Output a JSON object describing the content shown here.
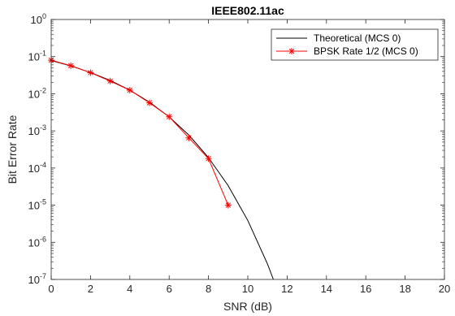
{
  "chart_data": {
    "type": "line",
    "title": "IEEE802.11ac",
    "xlabel": "SNR (dB)",
    "ylabel": "Bit Error Rate",
    "xlim": [
      0,
      20
    ],
    "ylim": [
      1e-07,
      1
    ],
    "yscale": "log",
    "grid": false,
    "legend_position": "top-right",
    "x_ticks": [
      "0",
      "2",
      "4",
      "6",
      "8",
      "10",
      "12",
      "14",
      "16",
      "18",
      "20"
    ],
    "y_ticks": [
      {
        "base": "10",
        "exp": "0"
      },
      {
        "base": "10",
        "exp": "-1"
      },
      {
        "base": "10",
        "exp": "-2"
      },
      {
        "base": "10",
        "exp": "-3"
      },
      {
        "base": "10",
        "exp": "-4"
      },
      {
        "base": "10",
        "exp": "-5"
      },
      {
        "base": "10",
        "exp": "-6"
      },
      {
        "base": "10",
        "exp": "-7"
      }
    ],
    "series": [
      {
        "name": "Theoretical (MCS 0)",
        "color": "#000000",
        "marker": "none",
        "x": [
          0,
          1,
          2,
          3,
          4,
          5,
          6,
          7,
          8,
          9,
          10,
          11,
          11.3
        ],
        "y": [
          0.0786,
          0.0563,
          0.0375,
          0.0229,
          0.0125,
          0.00595,
          0.00239,
          0.000773,
          0.000191,
          3.36e-05,
          3.87e-06,
          2.61e-07,
          1e-07
        ]
      },
      {
        "name": "BPSK Rate 1/2 (MCS 0)",
        "color": "#ff0000",
        "marker": "asterisk",
        "x": [
          0,
          1,
          2,
          3,
          4,
          5,
          6,
          7,
          8,
          9
        ],
        "y": [
          0.08,
          0.057,
          0.037,
          0.022,
          0.0125,
          0.0057,
          0.0024,
          0.00065,
          0.00018,
          1e-05
        ]
      }
    ]
  }
}
